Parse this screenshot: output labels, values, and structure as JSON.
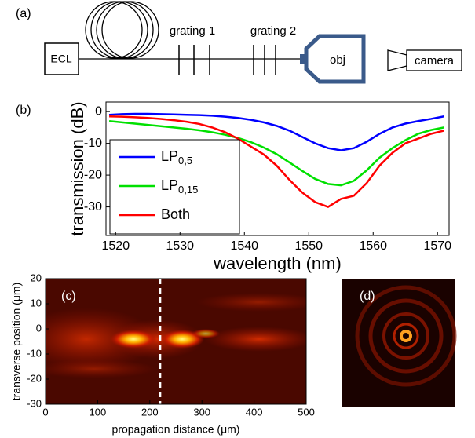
{
  "panel_labels": [
    "(a)",
    "(b)",
    "(c)",
    "(d)"
  ],
  "schematic": {
    "source": "ECL",
    "grating_1": "grating 1",
    "grating_2": "grating 2",
    "objective": "obj",
    "camera": "camera"
  },
  "chart_data": [
    {
      "type": "line",
      "xlabel": "wavelength (nm)",
      "ylabel": "transmission (dB)",
      "x": [
        1519,
        1521,
        1523,
        1525,
        1527,
        1529,
        1531,
        1533,
        1535,
        1537,
        1539,
        1541,
        1543,
        1545,
        1547,
        1549,
        1551,
        1553,
        1555,
        1557,
        1559,
        1561,
        1563,
        1565,
        1567,
        1569,
        1571
      ],
      "xlim": [
        1518.5,
        1571.8
      ],
      "xticks": [
        1520,
        1530,
        1540,
        1550,
        1560,
        1570
      ],
      "ylim": [
        -39,
        3
      ],
      "yticks": [
        0,
        -10,
        -20,
        -30
      ],
      "legend": "left",
      "series": [
        {
          "name": "LP",
          "subscript": "0,5",
          "color": "#0000ff",
          "values": [
            -1,
            -0.8,
            -0.7,
            -0.7,
            -0.8,
            -0.9,
            -1,
            -1.1,
            -1.3,
            -1.6,
            -2,
            -2.6,
            -3.4,
            -4.5,
            -6,
            -8,
            -10,
            -11.5,
            -12.2,
            -11.5,
            -9.5,
            -7,
            -5,
            -3.8,
            -3,
            -2.3,
            -1.5
          ]
        },
        {
          "name": "LP",
          "subscript": "0,15",
          "color": "#00e000",
          "values": [
            -3,
            -3.4,
            -3.8,
            -4.2,
            -4.6,
            -5,
            -5.4,
            -5.9,
            -6.5,
            -7.3,
            -8.3,
            -9.6,
            -11.3,
            -13.4,
            -16,
            -18.7,
            -21.2,
            -22.8,
            -23.2,
            -21.8,
            -18.5,
            -14.5,
            -11.5,
            -9,
            -7,
            -5.8,
            -5
          ]
        },
        {
          "name": "Both",
          "color": "#ff0000",
          "values": [
            -1.5,
            -1.6,
            -1.8,
            -2,
            -2.3,
            -2.7,
            -3.2,
            -3.9,
            -5,
            -6.5,
            -8.5,
            -11,
            -13.5,
            -17,
            -21.5,
            -25.5,
            -28.5,
            -30,
            -27.5,
            -26.5,
            -22.5,
            -17,
            -13,
            -10,
            -8.5,
            -7,
            -6
          ]
        }
      ]
    },
    {
      "type": "heatmap",
      "xlabel": "propagation distance (μm)",
      "ylabel": "transverse position (μm)",
      "xlim": [
        0,
        500
      ],
      "xticks": [
        0,
        100,
        200,
        300,
        400,
        500
      ],
      "ylim": [
        -30,
        20
      ],
      "yticks": [
        20,
        10,
        0,
        -10,
        -20,
        -30
      ],
      "vline": 220
    }
  ]
}
